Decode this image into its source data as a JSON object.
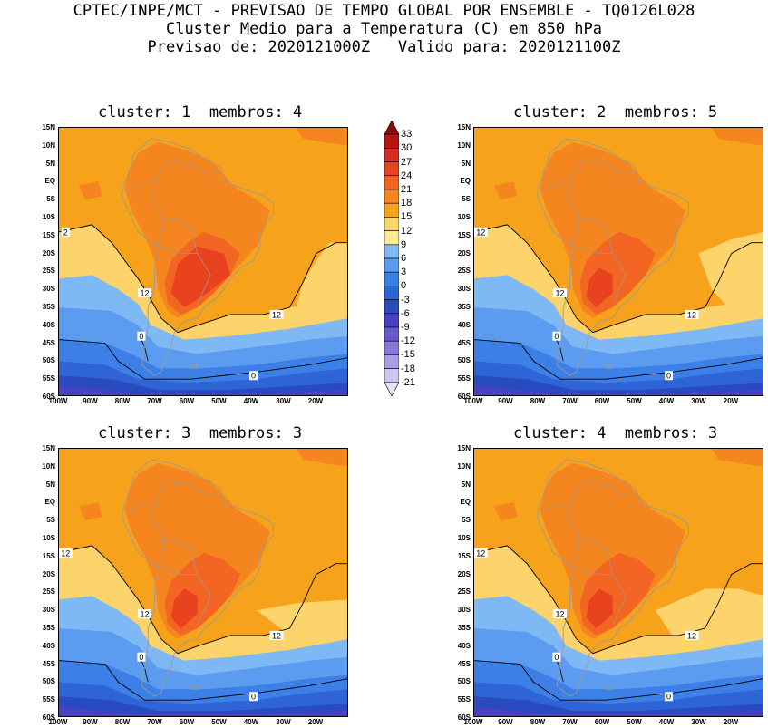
{
  "header": {
    "line1": "CPTEC/INPE/MCT - PREVISAO DE TEMPO GLOBAL POR ENSEMBLE - TQ0126L028",
    "line2": "Cluster Medio para a Temperatura (C) em 850 hPa",
    "line3": "Previsao de: 2020121000Z   Valido para: 2020121100Z"
  },
  "panels": [
    {
      "title": "cluster: 1  membros: 4",
      "contour_labels": [
        "2",
        "12",
        "12",
        "0",
        "0"
      ]
    },
    {
      "title": "cluster: 2  membros: 5",
      "contour_labels": [
        "12",
        "12",
        "12",
        "0",
        "0"
      ]
    },
    {
      "title": "cluster: 3  membros: 3",
      "contour_labels": [
        "12",
        "12",
        "12",
        "0",
        "0"
      ]
    },
    {
      "title": "cluster: 4  membros: 3",
      "contour_labels": [
        "12",
        "12",
        "12",
        "0",
        "0"
      ]
    }
  ],
  "lat_labels": [
    "15N",
    "10N",
    "5N",
    "EQ",
    "5S",
    "10S",
    "15S",
    "20S",
    "25S",
    "30S",
    "35S",
    "40S",
    "45S",
    "50S",
    "55S",
    "60S"
  ],
  "lon_labels": [
    "100W",
    "90W",
    "80W",
    "70W",
    "60W",
    "50W",
    "40W",
    "30W",
    "20W"
  ],
  "colorbar": {
    "levels": [
      "33",
      "30",
      "27",
      "24",
      "21",
      "18",
      "15",
      "12",
      "9",
      "6",
      "3",
      "0",
      "-3",
      "-6",
      "-9",
      "-12",
      "-15",
      "-18",
      "-21"
    ],
    "colors": [
      "#8e0a0a",
      "#b81414",
      "#d62d20",
      "#e8421e",
      "#f26522",
      "#f5861f",
      "#f7a21b",
      "#fdd36b",
      "#fde98f",
      "#7eb8f5",
      "#5b9cf0",
      "#3c7fe6",
      "#2e64d6",
      "#2a4bc0",
      "#4b3fc4",
      "#6a58d0",
      "#8a78dc",
      "#ab9ce6",
      "#cec4f0",
      "#e6e0f8"
    ]
  }
}
